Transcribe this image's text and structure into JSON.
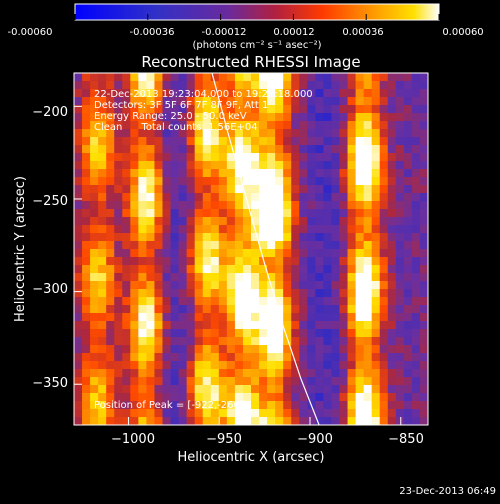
{
  "colorbar": {
    "tick_labels": [
      "-0.00060",
      "-0.00036",
      "-0.00012",
      "0.00012",
      "0.00036",
      "0.00060"
    ],
    "min": -0.0006,
    "max": 0.0006,
    "units": "(photons cm⁻² s⁻¹ asec⁻²)"
  },
  "chart_data": {
    "type": "heatmap",
    "title": "Reconstructed RHESSI Image",
    "xlabel": "Heliocentric X (arcsec)",
    "ylabel": "Heliocentric Y (arcsec)",
    "xlim": [
      -1030,
      -835
    ],
    "ylim": [
      -372,
      -182
    ],
    "xticks": [
      -1000,
      -950,
      -900,
      -850
    ],
    "yticks": [
      -200,
      -250,
      -300,
      -350
    ],
    "xtick_labels": [
      "−1000",
      "−950",
      "−900",
      "−850"
    ],
    "ytick_labels": [
      "−200",
      "−250",
      "−300",
      "−350"
    ],
    "annotations": [
      "22-Dec-2013 19:23:04.000 to 19:27:18.000",
      "Detectors: 3F 5F 6F 7F 8F 9F, Att 1",
      "Energy Range: 25.0 - 50.0 keV",
      "Clean      Total counts: 1.56E+04"
    ],
    "peak_label": "Position of Peak = [-922,-266]",
    "peak": [
      -922,
      -266
    ],
    "limb_curve": {
      "x": [
        -954,
        -945,
        -935,
        -925,
        -915,
        -905,
        -895
      ],
      "y": [
        -182,
        -215,
        -250,
        -285,
        -318,
        -347,
        -372
      ]
    },
    "stripes": [
      {
        "x": -1017,
        "amplitude": 0.55
      },
      {
        "x": -990,
        "amplitude": 0.75
      },
      {
        "x": -957,
        "amplitude": 0.7
      },
      {
        "x": -937,
        "amplitude": 0.8
      },
      {
        "x": -920,
        "amplitude": 0.85
      },
      {
        "x": -870,
        "amplitude": 0.9
      }
    ],
    "colormap": [
      "#0000ff",
      "#3a2dbd",
      "#6a2fa0",
      "#b0283a",
      "#ff4a00",
      "#ff9a00",
      "#ffe000",
      "#ffffff"
    ]
  },
  "footer": {
    "timestamp": "23-Dec-2013 06:49"
  }
}
